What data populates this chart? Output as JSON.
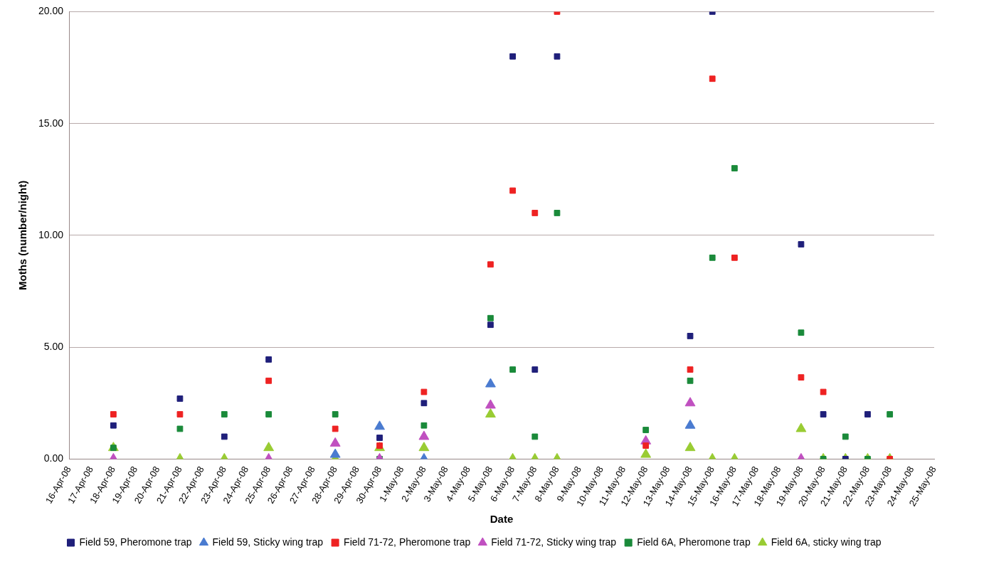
{
  "chart_data": {
    "type": "scatter",
    "xlabel": "Date",
    "ylabel": "Moths (number/night)",
    "categories": [
      "16-Apr-08",
      "17-Apr-08",
      "18-Apr-08",
      "19-Apr-08",
      "20-Apr-08",
      "21-Apr-08",
      "22-Apr-08",
      "23-Apr-08",
      "24-Apr-08",
      "25-Apr-08",
      "26-Apr-08",
      "27-Apr-08",
      "28-Apr-08",
      "29-Apr-08",
      "30-Apr-08",
      "1-May-08",
      "2-May-08",
      "3-May-08",
      "4-May-08",
      "5-May-08",
      "6-May-08",
      "7-May-08",
      "8-May-08",
      "9-May-08",
      "10-May-08",
      "11-May-08",
      "12-May-08",
      "13-May-08",
      "14-May-08",
      "15-May-08",
      "16-May-08",
      "17-May-08",
      "18-May-08",
      "19-May-08",
      "20-May-08",
      "21-May-08",
      "22-May-08",
      "23-May-08",
      "24-May-08",
      "25-May-08"
    ],
    "ylim": [
      0,
      20
    ],
    "yticks": [
      {
        "value": 0,
        "label": "0.00"
      },
      {
        "value": 5,
        "label": "5.00"
      },
      {
        "value": 10,
        "label": "10.00"
      },
      {
        "value": 15,
        "label": "15.00"
      },
      {
        "value": 20,
        "label": "20.00"
      }
    ],
    "grid": "y",
    "legend": "bottom",
    "series": [
      {
        "name": "Field 59, Pheromone trap",
        "color": "#1f1f7a",
        "marker": "square",
        "values": [
          null,
          null,
          1.5,
          null,
          null,
          2.7,
          null,
          1.0,
          null,
          4.45,
          null,
          null,
          null,
          null,
          0.95,
          null,
          2.5,
          null,
          null,
          6.0,
          18,
          4.0,
          18,
          null,
          null,
          null,
          null,
          null,
          5.5,
          20,
          null,
          null,
          null,
          9.6,
          2.0,
          0,
          2.0,
          null,
          null,
          null
        ]
      },
      {
        "name": "Field 59, Sticky wing trap",
        "color": "#4a7bd0",
        "marker": "triangle",
        "values": [
          null,
          null,
          null,
          null,
          null,
          null,
          null,
          null,
          null,
          null,
          null,
          null,
          0.2,
          null,
          1.45,
          null,
          0,
          null,
          null,
          3.35,
          null,
          null,
          null,
          null,
          null,
          null,
          null,
          null,
          1.5,
          null,
          null,
          null,
          null,
          null,
          null,
          null,
          null,
          null,
          null,
          null
        ]
      },
      {
        "name": "Field 71-72, Pheromone trap",
        "color": "#ee2222",
        "marker": "square",
        "values": [
          null,
          null,
          2.0,
          null,
          null,
          2.0,
          null,
          null,
          null,
          3.5,
          null,
          null,
          1.35,
          null,
          0.6,
          null,
          3.0,
          null,
          null,
          8.7,
          12,
          11,
          20,
          null,
          null,
          null,
          0.6,
          null,
          4.0,
          17,
          9,
          null,
          null,
          3.65,
          3.0,
          null,
          null,
          0,
          null,
          null
        ]
      },
      {
        "name": "Field 71-72, Sticky wing trap",
        "color": "#c050c0",
        "marker": "triangle",
        "values": [
          null,
          null,
          0,
          null,
          null,
          null,
          null,
          null,
          null,
          0,
          null,
          null,
          0.7,
          null,
          0,
          null,
          1.0,
          null,
          null,
          2.4,
          null,
          null,
          null,
          null,
          null,
          null,
          0.8,
          null,
          2.5,
          null,
          null,
          null,
          null,
          0,
          null,
          null,
          null,
          null,
          null,
          null
        ]
      },
      {
        "name": "Field 6A, Pheromone trap",
        "color": "#1a8a3a",
        "marker": "square",
        "values": [
          null,
          null,
          0.5,
          null,
          null,
          1.35,
          null,
          2.0,
          null,
          2.0,
          null,
          null,
          2.0,
          null,
          0,
          null,
          1.5,
          null,
          null,
          6.3,
          4.0,
          1.0,
          11,
          null,
          null,
          null,
          1.3,
          null,
          3.5,
          9,
          13,
          null,
          null,
          5.65,
          0,
          1.0,
          0,
          2.0,
          null,
          null
        ]
      },
      {
        "name": "Field 6A, sticky wing trap",
        "color": "#99cc33",
        "marker": "triangle",
        "values": [
          null,
          null,
          0.5,
          null,
          null,
          0,
          null,
          0,
          null,
          0.5,
          null,
          null,
          0,
          null,
          0.5,
          null,
          0.5,
          null,
          null,
          2.0,
          0,
          0,
          0,
          null,
          null,
          null,
          0.2,
          null,
          0.5,
          0,
          0,
          null,
          null,
          1.35,
          0,
          0,
          0,
          0,
          null,
          null
        ]
      }
    ]
  }
}
